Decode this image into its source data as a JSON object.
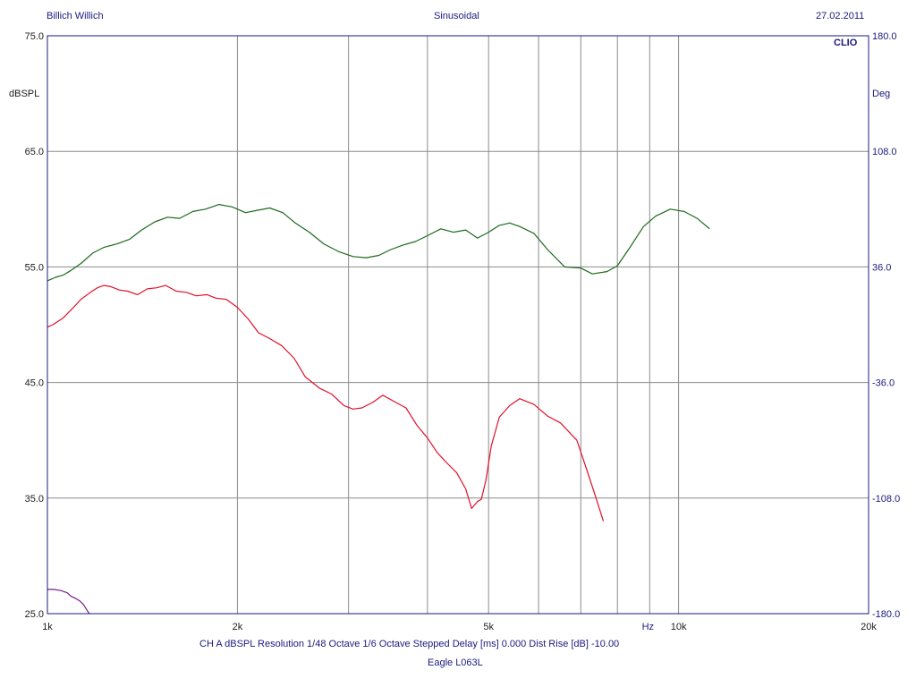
{
  "header": {
    "left": "Billich Willich",
    "center": "Sinusoidal",
    "right": "27.02.2011",
    "brand": "CLIO"
  },
  "footer": {
    "settings": "CH A   dBSPL   Resolution 1/48 Octave   1/6 Octave   Stepped    Delay [ms] 0.000    Dist Rise [dB] -10.00",
    "device": "Eagle L063L"
  },
  "colors": {
    "grid": "#8c8c8c",
    "frame": "#1a1a80",
    "fundamental": "#e0102a",
    "harmonic_green": "#1c6a1c",
    "harmonic_purple": "#7a1a8a"
  },
  "chart_data": {
    "type": "line",
    "x_scale": "log",
    "xlim": [
      1000,
      20000
    ],
    "ylim": [
      25,
      75
    ],
    "y2lim": [
      -180,
      180
    ],
    "ylabel": "dBSPL",
    "y2label": "Deg",
    "xlabel": "Hz",
    "xticks": [
      {
        "value": 1000,
        "label": "1k"
      },
      {
        "value": 2000,
        "label": "2k"
      },
      {
        "value": 5000,
        "label": "5k"
      },
      {
        "value": 10000,
        "label": "10k"
      },
      {
        "value": 20000,
        "label": "20k"
      }
    ],
    "xunit_label": "Hz",
    "xunit_value": 9000,
    "x_grid": [
      2000,
      3000,
      4000,
      5000,
      6000,
      7000,
      8000,
      9000,
      10000
    ],
    "yticks": [
      {
        "value": 75,
        "label": "75.0"
      },
      {
        "value": 65,
        "label": "65.0"
      },
      {
        "value": 55,
        "label": "55.0"
      },
      {
        "value": 45,
        "label": "45.0"
      },
      {
        "value": 35,
        "label": "35.0"
      },
      {
        "value": 25,
        "label": "25.0"
      }
    ],
    "y2ticks": [
      {
        "value": 180,
        "label": "180.0"
      },
      {
        "value": 108,
        "label": "108.0"
      },
      {
        "value": 36,
        "label": "36.0"
      },
      {
        "value": -36,
        "label": "-36.0"
      },
      {
        "value": -108,
        "label": "-108.0"
      },
      {
        "value": -180,
        "label": "-180.0"
      }
    ],
    "series": [
      {
        "color": "#e0102a",
        "x": [
          1000,
          1020,
          1060,
          1100,
          1130,
          1170,
          1200,
          1230,
          1260,
          1300,
          1340,
          1390,
          1440,
          1490,
          1540,
          1600,
          1660,
          1720,
          1790,
          1850,
          1920,
          2000,
          2080,
          2160,
          2250,
          2350,
          2460,
          2560,
          2700,
          2820,
          2950,
          3050,
          3150,
          3280,
          3400,
          3560,
          3700,
          3850,
          4000,
          4150,
          4300,
          4450,
          4600,
          4700,
          4800,
          4870,
          4950,
          5050,
          5200,
          5400,
          5600,
          5900,
          6200,
          6500,
          6900,
          7200,
          7400,
          7600
        ],
        "values": [
          49.8,
          50.0,
          50.6,
          51.5,
          52.2,
          52.8,
          53.2,
          53.4,
          53.3,
          53.0,
          52.9,
          52.6,
          53.1,
          53.2,
          53.4,
          52.9,
          52.8,
          52.5,
          52.6,
          52.3,
          52.2,
          51.5,
          50.5,
          49.3,
          48.8,
          48.2,
          47.1,
          45.5,
          44.5,
          44.0,
          43.0,
          42.7,
          42.8,
          43.3,
          43.9,
          43.3,
          42.8,
          41.3,
          40.2,
          38.9,
          38.0,
          37.2,
          35.8,
          34.1,
          34.7,
          34.9,
          36.5,
          39.5,
          42.0,
          43.0,
          43.6,
          43.1,
          42.1,
          41.5,
          40.0,
          37.0,
          35.0,
          33.0
        ]
      },
      {
        "color": "#1c6a1c",
        "x": [
          1000,
          1030,
          1060,
          1090,
          1130,
          1180,
          1230,
          1290,
          1350,
          1410,
          1480,
          1550,
          1620,
          1700,
          1780,
          1870,
          1960,
          2060,
          2150,
          2250,
          2360,
          2470,
          2600,
          2740,
          2900,
          3050,
          3200,
          3350,
          3500,
          3660,
          3830,
          4000,
          4200,
          4400,
          4600,
          4800,
          5000,
          5200,
          5400,
          5600,
          5900,
          6200,
          6600,
          7000,
          7300,
          7700,
          8000,
          8400,
          8800,
          9200,
          9700,
          10200,
          10700,
          11200
        ],
        "values": [
          53.8,
          54.1,
          54.3,
          54.7,
          55.3,
          56.2,
          56.7,
          57.0,
          57.4,
          58.2,
          58.9,
          59.3,
          59.2,
          59.8,
          60.0,
          60.4,
          60.2,
          59.7,
          59.9,
          60.1,
          59.7,
          58.8,
          58.0,
          57.0,
          56.3,
          55.9,
          55.8,
          56.0,
          56.5,
          56.9,
          57.2,
          57.7,
          58.3,
          58.0,
          58.2,
          57.5,
          58.0,
          58.6,
          58.8,
          58.5,
          57.9,
          56.5,
          55.0,
          54.9,
          54.4,
          54.6,
          55.1,
          56.8,
          58.5,
          59.4,
          60.0,
          59.8,
          59.2,
          58.3
        ]
      },
      {
        "color": "#7a1a8a",
        "x": [
          1000,
          1025,
          1050,
          1075,
          1090,
          1110,
          1125,
          1140,
          1155,
          1165
        ],
        "values": [
          27.1,
          27.1,
          27.0,
          26.8,
          26.5,
          26.3,
          26.1,
          25.8,
          25.3,
          25.0
        ]
      }
    ]
  }
}
